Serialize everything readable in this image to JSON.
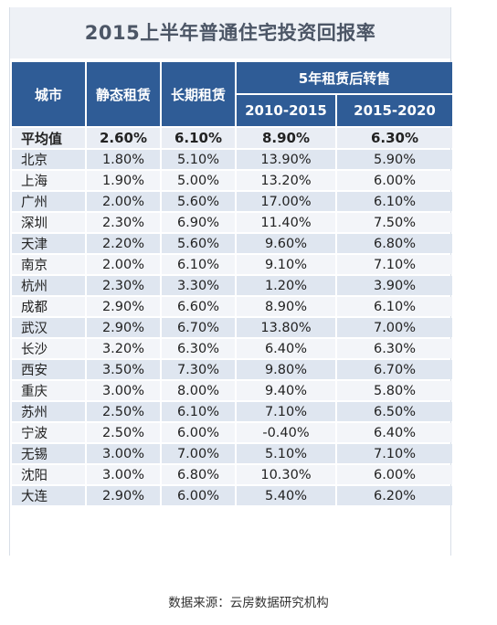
{
  "title": "2015上半年普通住宅投资回报率",
  "headers": {
    "city": "城市",
    "static": "静态租赁",
    "long": "长期租赁",
    "group": "5年租赁后转售",
    "p1": "2010-2015",
    "p2": "2015-2020"
  },
  "average": {
    "city": "平均值",
    "static": "2.60%",
    "long": "6.10%",
    "p1": "8.90%",
    "p2": "6.30%"
  },
  "rows": [
    {
      "city": "北京",
      "static": "1.80%",
      "long": "5.10%",
      "p1": "13.90%",
      "p2": "5.90%"
    },
    {
      "city": "上海",
      "static": "1.90%",
      "long": "5.00%",
      "p1": "13.20%",
      "p2": "6.00%"
    },
    {
      "city": "广州",
      "static": "2.00%",
      "long": "5.60%",
      "p1": "17.00%",
      "p2": "6.10%"
    },
    {
      "city": "深圳",
      "static": "2.30%",
      "long": "6.90%",
      "p1": "11.40%",
      "p2": "7.50%"
    },
    {
      "city": "天津",
      "static": "2.20%",
      "long": "5.60%",
      "p1": "9.60%",
      "p2": "6.80%"
    },
    {
      "city": "南京",
      "static": "2.00%",
      "long": "6.10%",
      "p1": "9.10%",
      "p2": "7.10%"
    },
    {
      "city": "杭州",
      "static": "2.30%",
      "long": "3.30%",
      "p1": "1.20%",
      "p2": "3.90%"
    },
    {
      "city": "成都",
      "static": "2.90%",
      "long": "6.60%",
      "p1": "8.90%",
      "p2": "6.10%"
    },
    {
      "city": "武汉",
      "static": "2.90%",
      "long": "6.70%",
      "p1": "13.80%",
      "p2": "7.00%"
    },
    {
      "city": "长沙",
      "static": "3.20%",
      "long": "6.30%",
      "p1": "6.40%",
      "p2": "6.30%"
    },
    {
      "city": "西安",
      "static": "3.50%",
      "long": "7.30%",
      "p1": "9.80%",
      "p2": "6.70%"
    },
    {
      "city": "重庆",
      "static": "3.00%",
      "long": "8.00%",
      "p1": "9.40%",
      "p2": "5.80%"
    },
    {
      "city": "苏州",
      "static": "2.50%",
      "long": "6.10%",
      "p1": "7.10%",
      "p2": "6.50%"
    },
    {
      "city": "宁波",
      "static": "2.50%",
      "long": "6.00%",
      "p1": "-0.40%",
      "p2": "6.40%"
    },
    {
      "city": "无锡",
      "static": "3.00%",
      "long": "7.00%",
      "p1": "5.10%",
      "p2": "7.10%"
    },
    {
      "city": "沈阳",
      "static": "3.00%",
      "long": "6.80%",
      "p1": "10.30%",
      "p2": "6.00%"
    },
    {
      "city": "大连",
      "static": "2.90%",
      "long": "6.00%",
      "p1": "5.40%",
      "p2": "6.20%"
    }
  ],
  "source": "数据来源：云房数据研究机构",
  "colors": {
    "header": "#2f5c96",
    "row_alt": "#dfe6f0",
    "title_bg": "#eef1f6"
  }
}
